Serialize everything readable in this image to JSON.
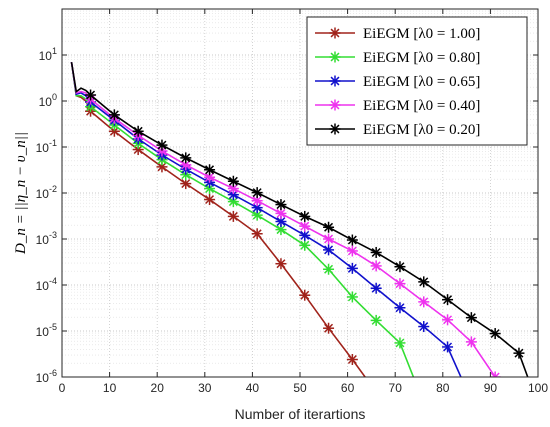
{
  "chart_data": {
    "type": "line",
    "xlabel": "Number of iterartions",
    "ylabel": "D_n = ||η_n − υ_n||",
    "xlim": [
      0,
      100
    ],
    "ylim": [
      1e-06,
      100
    ],
    "yscale": "log",
    "grid": true,
    "legend_position": "top-right",
    "x_ticks": [
      0,
      10,
      20,
      30,
      40,
      50,
      60,
      70,
      80,
      90,
      100
    ],
    "y_ticks": [
      {
        "value": 1e-06,
        "base": "10",
        "exp": "-6"
      },
      {
        "value": 1e-05,
        "base": "10",
        "exp": "-5"
      },
      {
        "value": 0.0001,
        "base": "10",
        "exp": "-4"
      },
      {
        "value": 0.001,
        "base": "10",
        "exp": "-3"
      },
      {
        "value": 0.01,
        "base": "10",
        "exp": "-2"
      },
      {
        "value": 0.1,
        "base": "10",
        "exp": "-1"
      },
      {
        "value": 1,
        "base": "10",
        "exp": "0"
      },
      {
        "value": 10,
        "base": "10",
        "exp": "1"
      }
    ],
    "series": [
      {
        "name": "EiEGM [λ0 = 1.00]",
        "color": "#a0231b",
        "x": [
          2,
          3,
          4,
          5,
          6,
          11,
          16,
          21,
          26,
          31,
          36,
          41,
          46,
          51,
          56,
          61,
          64
        ],
        "y": [
          7,
          1.3,
          1.2,
          1.0,
          0.6,
          0.22,
          0.088,
          0.037,
          0.016,
          0.0072,
          0.0031,
          0.0013,
          0.00029,
          6e-05,
          1.15e-05,
          2.4e-06,
          9e-07
        ]
      },
      {
        "name": "EiEGM [λ0 = 0.80]",
        "color": "#33dd33",
        "x": [
          2,
          3,
          4,
          5,
          6,
          11,
          16,
          21,
          26,
          31,
          36,
          41,
          46,
          51,
          56,
          61,
          66,
          71,
          74
        ],
        "y": [
          7,
          1.3,
          1.3,
          1.1,
          0.75,
          0.3,
          0.12,
          0.053,
          0.025,
          0.0125,
          0.0065,
          0.0033,
          0.0016,
          0.00073,
          0.00022,
          5.5e-05,
          1.7e-05,
          5.5e-06,
          9e-07
        ]
      },
      {
        "name": "EiEGM [λ0 = 0.65]",
        "color": "#1111cc",
        "x": [
          2,
          3,
          4,
          5,
          6,
          11,
          16,
          21,
          26,
          31,
          36,
          41,
          46,
          51,
          56,
          61,
          66,
          71,
          76,
          81,
          84
        ],
        "y": [
          7,
          1.4,
          1.5,
          1.3,
          0.95,
          0.38,
          0.15,
          0.067,
          0.033,
          0.017,
          0.0092,
          0.0048,
          0.0024,
          0.0012,
          0.00058,
          0.00023,
          8.5e-05,
          3.2e-05,
          1.25e-05,
          4.5e-06,
          9e-07
        ]
      },
      {
        "name": "EiEGM [λ0 = 0.40]",
        "color": "#ee33ee",
        "x": [
          2,
          3,
          4,
          5,
          6,
          11,
          16,
          21,
          26,
          31,
          36,
          41,
          46,
          51,
          56,
          61,
          66,
          71,
          76,
          81,
          86,
          91
        ],
        "y": [
          7,
          1.5,
          1.6,
          1.5,
          1.1,
          0.42,
          0.18,
          0.082,
          0.041,
          0.022,
          0.0125,
          0.0068,
          0.0036,
          0.0019,
          0.001,
          0.00055,
          0.00026,
          0.000107,
          4.3e-05,
          1.75e-05,
          5.8e-06,
          1e-06
        ]
      },
      {
        "name": "EiEGM [λ0 = 0.20]",
        "color": "#000000",
        "x": [
          2,
          3,
          4,
          5,
          6,
          11,
          16,
          21,
          26,
          31,
          36,
          41,
          46,
          51,
          56,
          61,
          66,
          71,
          76,
          81,
          86,
          91,
          96,
          98
        ],
        "y": [
          7,
          1.6,
          1.9,
          1.7,
          1.35,
          0.5,
          0.22,
          0.11,
          0.058,
          0.032,
          0.018,
          0.0102,
          0.0056,
          0.0031,
          0.0018,
          0.00095,
          0.00051,
          0.00025,
          0.000117,
          4.8e-05,
          1.95e-05,
          8.8e-06,
          3.3e-06,
          9e-07
        ]
      }
    ]
  }
}
